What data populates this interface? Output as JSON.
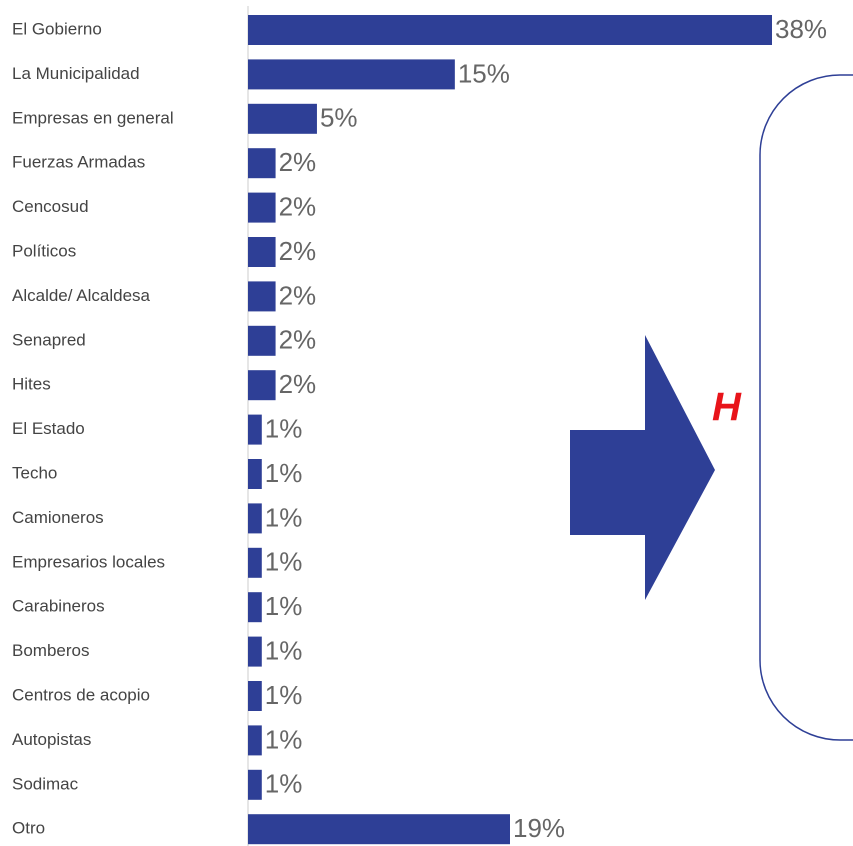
{
  "chart_data": {
    "type": "bar",
    "orientation": "horizontal",
    "color": "#2e3f96",
    "categories": [
      "El Gobierno",
      "La Municipalidad",
      "Empresas en general",
      "Fuerzas Armadas",
      "Cencosud",
      "Políticos",
      "Alcalde/ Alcaldesa",
      "Senapred",
      "Hites",
      "El Estado",
      "Techo",
      "Camioneros",
      "Empresarios locales",
      "Carabineros",
      "Bomberos",
      "Centros de acopio",
      "Autopistas",
      "Sodimac",
      "Otro"
    ],
    "values": [
      38,
      15,
      5,
      2,
      2,
      2,
      2,
      2,
      2,
      1,
      1,
      1,
      1,
      1,
      1,
      1,
      1,
      1,
      19
    ],
    "value_labels": [
      "38%",
      "15%",
      "5%",
      "2%",
      "2%",
      "2%",
      "2%",
      "2%",
      "2%",
      "1%",
      "1%",
      "1%",
      "1%",
      "1%",
      "1%",
      "1%",
      "1%",
      "1%",
      "19%"
    ]
  },
  "callout": {
    "text": "H"
  }
}
